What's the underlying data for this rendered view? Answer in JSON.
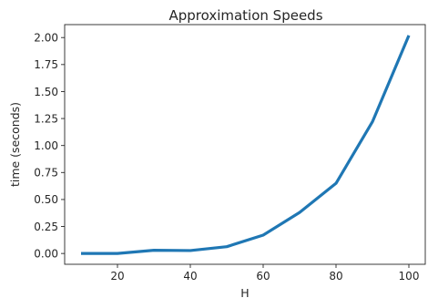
{
  "chart_data": {
    "type": "line",
    "title": "Approximation Speeds",
    "xlabel": "H",
    "ylabel": "time (seconds)",
    "x": [
      10,
      20,
      30,
      40,
      50,
      60,
      70,
      80,
      90,
      100
    ],
    "series": [
      {
        "values": [
          0.0,
          0.0,
          0.03,
          0.027,
          0.063,
          0.17,
          0.38,
          0.65,
          1.22,
          2.02
        ],
        "color": "#1f77b4"
      }
    ],
    "xticks": [
      20,
      40,
      60,
      80,
      100
    ],
    "xtick_labels": [
      "20",
      "40",
      "60",
      "80",
      "100"
    ],
    "yticks": [
      0.0,
      0.25,
      0.5,
      0.75,
      1.0,
      1.25,
      1.5,
      1.75,
      2.0
    ],
    "ytick_labels": [
      "0.00",
      "0.25",
      "0.50",
      "0.75",
      "1.00",
      "1.25",
      "1.50",
      "1.75",
      "2.00"
    ],
    "xlim": [
      5.5,
      104.5
    ],
    "ylim": [
      -0.1,
      2.12
    ],
    "grid": false,
    "legend": "none"
  }
}
